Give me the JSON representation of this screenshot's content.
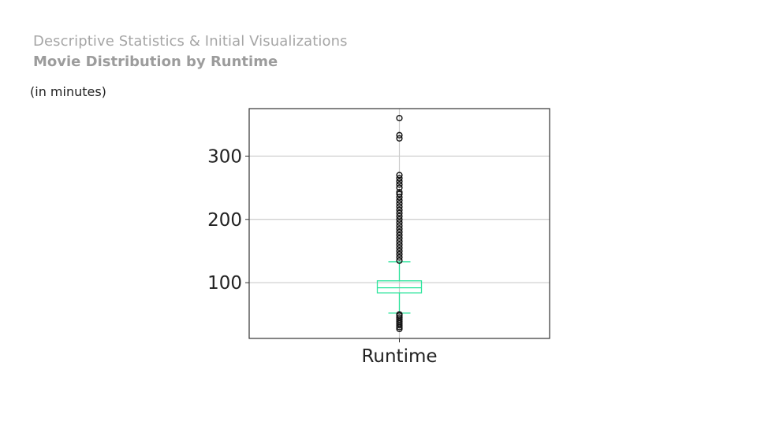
{
  "header": {
    "subtitle": "Descriptive Statistics & Initial Visualizations",
    "title": "Movie Distribution by Runtime",
    "unit_note": "(in minutes)"
  },
  "colors": {
    "box": "#2ee59d",
    "grid": "#cccccc",
    "frame": "#333333",
    "outlier": "#111111"
  },
  "chart_data": {
    "type": "box",
    "title": "",
    "xlabel": "",
    "ylabel": "",
    "categories": [
      "Runtime"
    ],
    "ylim": [
      12,
      375
    ],
    "yticks": [
      100,
      200,
      300
    ],
    "grid": true,
    "box": {
      "whisker_low": 52,
      "q1": 84,
      "median": 92,
      "q3": 103,
      "whisker_high": 133
    },
    "outliers_high": [
      135,
      140,
      145,
      150,
      155,
      160,
      165,
      170,
      175,
      180,
      185,
      190,
      195,
      200,
      205,
      210,
      215,
      220,
      225,
      230,
      235,
      240,
      243,
      250,
      255,
      260,
      265,
      270,
      328,
      333,
      360
    ],
    "outliers_low": [
      27,
      30,
      33,
      36,
      39,
      42,
      45,
      48,
      50
    ]
  }
}
